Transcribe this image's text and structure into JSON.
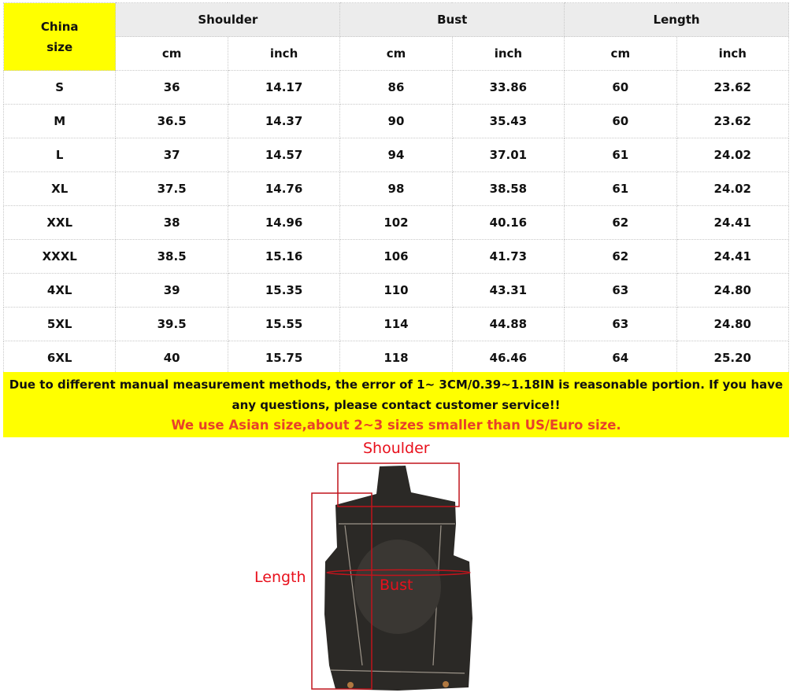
{
  "table": {
    "corner": [
      "China",
      "size"
    ],
    "groups": [
      "Shoulder",
      "Bust",
      "Length"
    ],
    "units": [
      "cm",
      "inch",
      "cm",
      "inch",
      "cm",
      "inch"
    ],
    "rows": [
      [
        "S",
        "36",
        "14.17",
        "86",
        "33.86",
        "60",
        "23.62"
      ],
      [
        "M",
        "36.5",
        "14.37",
        "90",
        "35.43",
        "60",
        "23.62"
      ],
      [
        "L",
        "37",
        "14.57",
        "94",
        "37.01",
        "61",
        "24.02"
      ],
      [
        "XL",
        "37.5",
        "14.76",
        "98",
        "38.58",
        "61",
        "24.02"
      ],
      [
        "XXL",
        "38",
        "14.96",
        "102",
        "40.16",
        "62",
        "24.41"
      ],
      [
        "XXXL",
        "38.5",
        "15.16",
        "106",
        "41.73",
        "62",
        "24.41"
      ],
      [
        "4XL",
        "39",
        "15.35",
        "110",
        "43.31",
        "63",
        "24.80"
      ],
      [
        "5XL",
        "39.5",
        "15.55",
        "114",
        "44.88",
        "63",
        "24.80"
      ],
      [
        "6XL",
        "40",
        "15.75",
        "118",
        "46.46",
        "64",
        "25.20"
      ]
    ]
  },
  "note": {
    "line1": "Due to different manual measurement methods, the error of 1~ 3CM/0.39~1.18IN is reasonable portion. If you have any questions, please contact customer service!!",
    "line2": "We use Asian size,about 2~3 sizes smaller than US/Euro size."
  },
  "figure": {
    "shoulder": "Shoulder",
    "length": "Length",
    "bust": "Bust"
  },
  "colors": {
    "highlight": "#ffff00",
    "header_gray": "#ececec",
    "warning_red": "#e8402a",
    "measure_red": "#e8101c"
  }
}
